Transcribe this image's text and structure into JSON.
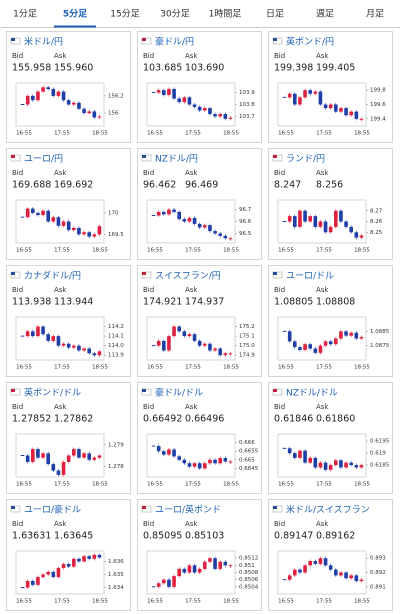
{
  "tabs": [
    "1分足",
    "5分足",
    "15分足",
    "30分足",
    "1時間足",
    "日足",
    "週足",
    "月足"
  ],
  "labels": {
    "bid": "Bid",
    "ask": "Ask"
  },
  "time_labels": [
    "16:55",
    "17:55",
    "18:55"
  ],
  "panels": [
    {
      "name": "米ドル/円",
      "bid": "155.958",
      "ask": "155.960",
      "ylim": [
        155.85,
        156.35
      ],
      "yticks": [
        156.2,
        156
      ],
      "closes": [
        156.1,
        156.2,
        156.15,
        156.25,
        156.3,
        156.28,
        156.2,
        156.25,
        156.15,
        156.1,
        156.12,
        156.05,
        156.0,
        156.02,
        155.95,
        155.96
      ]
    },
    {
      "name": "豪ドル/円",
      "bid": "103.685",
      "ask": "103.690",
      "ylim": [
        103.62,
        103.98
      ],
      "yticks": [
        103.9,
        103.8,
        103.7
      ],
      "closes": [
        103.9,
        103.92,
        103.88,
        103.93,
        103.85,
        103.82,
        103.86,
        103.8,
        103.78,
        103.75,
        103.77,
        103.72,
        103.7,
        103.72,
        103.68,
        103.69
      ]
    },
    {
      "name": "英ポンド/円",
      "bid": "199.398",
      "ask": "199.405",
      "ylim": [
        199.3,
        199.9
      ],
      "yticks": [
        199.8,
        199.6,
        199.4
      ],
      "closes": [
        199.7,
        199.75,
        199.6,
        199.7,
        199.8,
        199.75,
        199.78,
        199.6,
        199.55,
        199.6,
        199.5,
        199.55,
        199.45,
        199.5,
        199.4,
        199.4
      ]
    },
    {
      "name": "ユーロ/円",
      "bid": "169.688",
      "ask": "169.692",
      "ylim": [
        169.3,
        170.3
      ],
      "yticks": [
        170,
        169.5
      ],
      "closes": [
        169.9,
        170.1,
        170.0,
        169.95,
        170.05,
        169.8,
        169.9,
        169.7,
        169.8,
        169.6,
        169.65,
        169.5,
        169.55,
        169.45,
        169.5,
        169.69
      ]
    },
    {
      "name": "NZドル/円",
      "bid": "96.462",
      "ask": "96.469",
      "ylim": [
        96.42,
        96.78
      ],
      "yticks": [
        96.7,
        96.6,
        96.5
      ],
      "closes": [
        96.65,
        96.68,
        96.66,
        96.7,
        96.68,
        96.62,
        96.6,
        96.63,
        96.58,
        96.55,
        96.57,
        96.52,
        96.5,
        96.48,
        96.46,
        96.46
      ]
    },
    {
      "name": "ランド/円",
      "bid": "8.247",
      "ask": "8.256",
      "ylim": [
        8.24,
        8.28
      ],
      "yticks": [
        8.27,
        8.26,
        8.25
      ],
      "closes": [
        8.26,
        8.265,
        8.255,
        8.27,
        8.26,
        8.265,
        8.255,
        8.26,
        8.25,
        8.255,
        8.27,
        8.26,
        8.255,
        8.25,
        8.245,
        8.247
      ]
    },
    {
      "name": "カナダドル/円",
      "bid": "113.938",
      "ask": "113.944",
      "ylim": [
        113.85,
        114.3
      ],
      "yticks": [
        114.2,
        114.1,
        {
          "value": 114,
          "label": "114.0"
        },
        113.9
      ],
      "closes": [
        114.1,
        114.15,
        114.1,
        114.2,
        114.12,
        114.05,
        114.1,
        114.0,
        114.02,
        113.98,
        114.0,
        113.95,
        113.97,
        113.92,
        113.9,
        113.94
      ]
    },
    {
      "name": "スイスフラン/円",
      "bid": "174.921",
      "ask": "174.937",
      "ylim": [
        174.85,
        175.3
      ],
      "yticks": [
        175.2,
        175.1,
        {
          "value": 175,
          "label": "175.0"
        },
        174.9
      ],
      "closes": [
        175.0,
        175.05,
        174.95,
        175.1,
        175.2,
        175.15,
        175.1,
        175.12,
        175.05,
        175.0,
        175.02,
        174.95,
        174.97,
        174.9,
        174.92,
        174.92
      ]
    },
    {
      "name": "ユーロ/ドル",
      "bid": "1.08805",
      "ask": "1.08808",
      "ylim": [
        1.0865,
        1.0895
      ],
      "yticks": [
        1.0885,
        1.0875
      ],
      "closes": [
        1.0885,
        1.0878,
        1.0874,
        1.0872,
        1.0876,
        1.0873,
        1.087,
        1.0875,
        1.0878,
        1.0876,
        1.088,
        1.0885,
        1.0882,
        1.0884,
        1.088,
        1.0881
      ]
    },
    {
      "name": "英ポンド/ドル",
      "bid": "1.27852",
      "ask": "1.27862",
      "ylim": [
        1.2775,
        1.2795
      ],
      "yticks": [
        1.279,
        1.278
      ],
      "closes": [
        1.2785,
        1.2782,
        1.2788,
        1.2784,
        1.2786,
        1.2781,
        1.2778,
        1.2776,
        1.2782,
        1.2785,
        1.2788,
        1.2784,
        1.2786,
        1.2783,
        1.2784,
        1.2785
      ]
    },
    {
      "name": "豪ドル/ドル",
      "bid": "0.66492",
      "ask": "0.66496",
      "ylim": [
        0.664,
        0.6665
      ],
      "yticks": [
        0.666,
        0.6655,
        0.665,
        0.6645
      ],
      "closes": [
        0.6658,
        0.6655,
        0.6653,
        0.6656,
        0.6652,
        0.665,
        0.6648,
        0.6646,
        0.6648,
        0.6645,
        0.6648,
        0.665,
        0.6648,
        0.6651,
        0.6649,
        0.6649
      ]
    },
    {
      "name": "NZドル/ドル",
      "bid": "0.61846",
      "ask": "0.61860",
      "ylim": [
        0.618,
        0.6198
      ],
      "yticks": [
        0.6195,
        0.619,
        0.6185
      ],
      "closes": [
        0.6192,
        0.619,
        0.6188,
        0.6191,
        0.6186,
        0.6188,
        0.6184,
        0.6186,
        0.6183,
        0.6185,
        0.6187,
        0.6184,
        0.6186,
        0.6185,
        0.6184,
        0.6185
      ]
    },
    {
      "name": "ユーロ/豪ドル",
      "bid": "1.63631",
      "ask": "1.63645",
      "ylim": [
        1.6335,
        1.6368
      ],
      "yticks": [
        1.636,
        1.635,
        1.634
      ],
      "closes": [
        1.634,
        1.6345,
        1.6342,
        1.6348,
        1.635,
        1.6352,
        1.6348,
        1.6355,
        1.6358,
        1.6356,
        1.6362,
        1.636,
        1.6364,
        1.6362,
        1.6365,
        1.6363
      ]
    },
    {
      "name": "ユーロ/英ポンド",
      "bid": "0.85095",
      "ask": "0.85103",
      "ylim": [
        0.8502,
        0.8514
      ],
      "yticks": [
        0.8512,
        0.851,
        0.8508,
        0.8506,
        0.8504
      ],
      "closes": [
        0.8504,
        0.8505,
        0.8506,
        0.8504,
        0.8507,
        0.8509,
        0.8508,
        0.851,
        0.8508,
        0.8509,
        0.8511,
        0.8512,
        0.8509,
        0.8511,
        0.851,
        0.851
      ]
    },
    {
      "name": "米ドル/スイスフラン",
      "bid": "0.89147",
      "ask": "0.89162",
      "ylim": [
        0.8905,
        0.8935
      ],
      "yticks": [
        0.893,
        0.892,
        0.891
      ],
      "closes": [
        0.8915,
        0.8918,
        0.8922,
        0.892,
        0.8925,
        0.8928,
        0.8926,
        0.893,
        0.8925,
        0.8922,
        0.8918,
        0.892,
        0.8916,
        0.8918,
        0.8914,
        0.8915
      ]
    }
  ]
}
